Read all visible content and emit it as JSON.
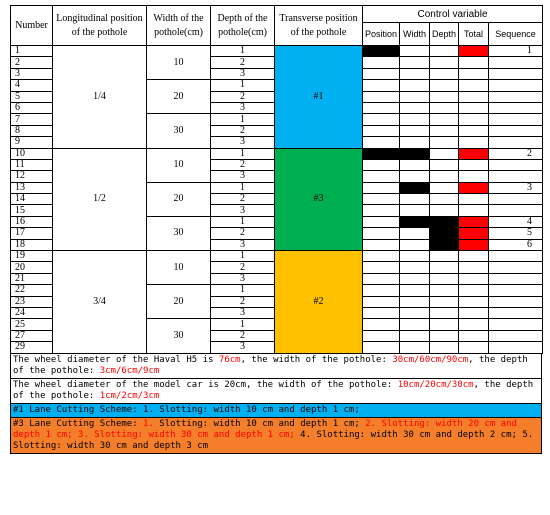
{
  "headers": {
    "number": "Number",
    "longitudinal": "Longitudinal position of the pothole",
    "width": "Width of the pothole(cm)",
    "depth": "Depth of the pothole(cm)",
    "transverse": "Transverse position of the pothole",
    "control_variable": "Control variable",
    "position": "Position",
    "width_short": "Width",
    "depth_short": "Depth",
    "total": "Total",
    "sequence": "Sequence"
  },
  "row_numbers": [
    "1",
    "2",
    "3",
    "4",
    "5",
    "6",
    "7",
    "8",
    "9",
    "10",
    "11",
    "12",
    "13",
    "14",
    "15",
    "16",
    "17",
    "18",
    "19",
    "20",
    "21",
    "22",
    "23",
    "24",
    "25",
    "27",
    "29"
  ],
  "longitudinal_groups": [
    "1/4",
    "1/2",
    "3/4"
  ],
  "width_values": [
    "10",
    "20",
    "30"
  ],
  "depth_values": [
    "1",
    "2",
    "3"
  ],
  "transverse_groups": [
    {
      "label": "#1",
      "color": "#00b0f0"
    },
    {
      "label": "#3",
      "color": "#00b050"
    },
    {
      "label": "#2",
      "color": "#ffc000"
    }
  ],
  "sequence_values": {
    "0": "1",
    "9": "2",
    "12": "3",
    "15": "4",
    "16": "5",
    "17": "6"
  },
  "cell_colors": {
    "black": "#000000",
    "red": "#ff0000"
  },
  "notes": {
    "havel": {
      "p1": "The wheel diameter of the Haval H5 is ",
      "r1": "76cm",
      "p2": ", the width of the pothole: ",
      "r2": "30cm/60cm/90cm",
      "p3": ", the depth of the pothole: ",
      "r3": "3cm/6cm/9cm"
    },
    "model": {
      "p1": "The wheel diameter of the model car is 20cm, the width of the pothole: ",
      "r1": "10cm/20cm/30cm",
      "p2": ", the depth of the pothole: ",
      "r2": "1cm/2cm/3cm"
    },
    "lane1": "#1 Lane Cutting Scheme: 1. Slotting: width 10 cm and depth 1 cm;",
    "lane3": {
      "p1": "#3 Lane Cutting Scheme: ",
      "r1": "1.",
      "p2": " Slotting: width 10 cm and depth 1 cm; ",
      "r2": "2. Slotting: width 20 cm and depth 1 cm; 3. Slotting: width 30 cm and depth 1 cm;",
      "p3": " 4. Slotting: width 30 cm and depth 2 cm; 5. Slotting: width 30 cm and depth 3 cm"
    }
  }
}
